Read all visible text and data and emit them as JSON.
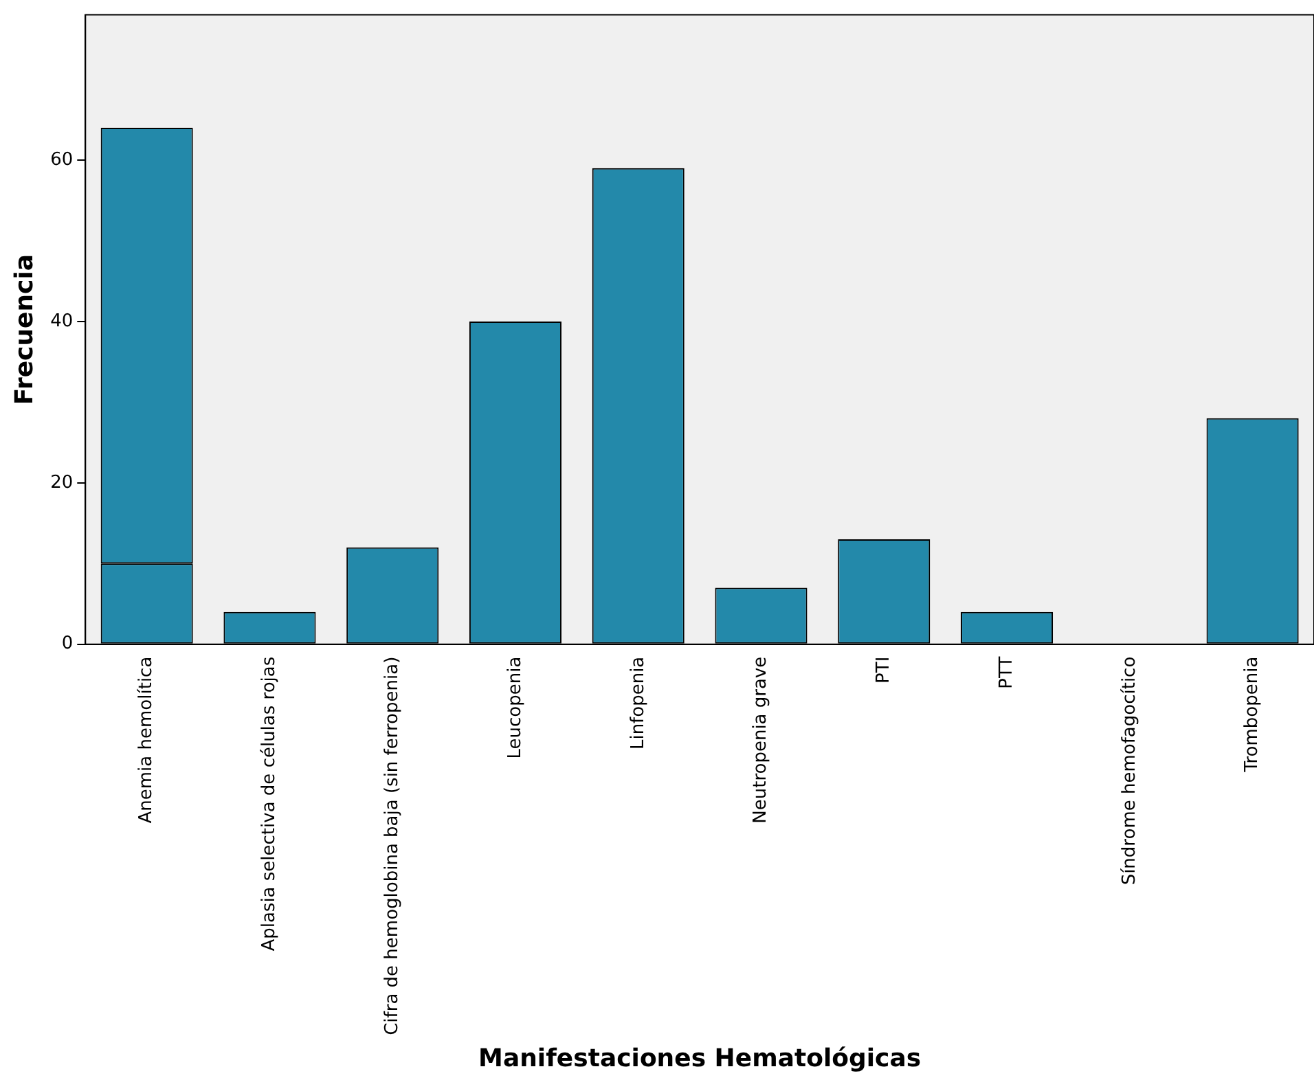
{
  "chart_data": {
    "type": "bar",
    "xlabel": "Manifestaciones Hematológicas",
    "ylabel": "Frecuencia",
    "categories": [
      "Anemia hemolítica",
      "Aplasia selectiva de células rojas",
      "Cifra de hemoglobina baja (sin ferropenia)",
      "Leucopenia",
      "Linfopenia",
      "Neutropenia grave",
      "PTI",
      "PTT",
      "Síndrome hemofagocítico",
      "Trombopenia"
    ],
    "stacked": true,
    "series": [
      {
        "color": "#2389aa",
        "values": [
          10,
          4,
          12,
          40,
          59,
          7,
          13,
          4,
          0,
          28
        ]
      },
      {
        "color": "#2389aa",
        "values": [
          54,
          null,
          null,
          null,
          null,
          null,
          null,
          null,
          null,
          null
        ]
      }
    ],
    "ylim": [
      0,
      78
    ],
    "yticks": [
      0,
      20,
      40,
      60
    ],
    "grid": false,
    "legend": false
  }
}
